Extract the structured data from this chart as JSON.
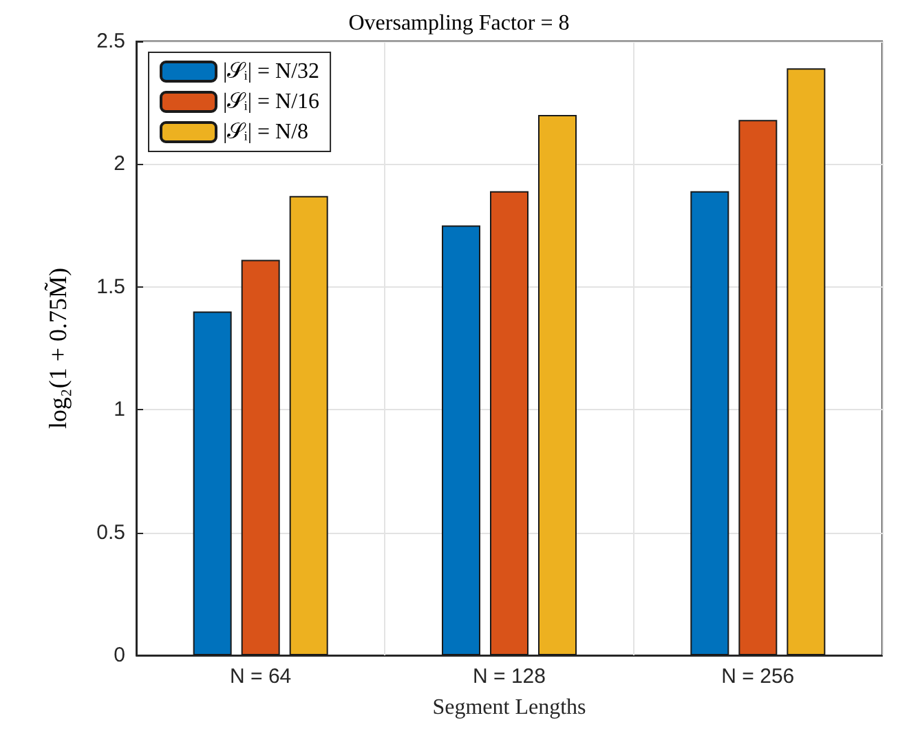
{
  "chart_data": {
    "type": "bar",
    "title": "Oversampling Factor = 8",
    "xlabel": "Segment Lengths",
    "ylabel": "log₂(1 + 0.75M̃)",
    "categories": [
      "N = 64",
      "N = 128",
      "N = 256"
    ],
    "series": [
      {
        "name": "|𝒮ᵢ| = N/32",
        "color": "#0072bd",
        "values": [
          1.4,
          1.75,
          1.89
        ]
      },
      {
        "name": "|𝒮ᵢ| = N/16",
        "color": "#d95319",
        "values": [
          1.61,
          1.89,
          2.18
        ]
      },
      {
        "name": "|𝒮ᵢ| = N/8",
        "color": "#edb120",
        "values": [
          1.87,
          2.2,
          2.39
        ]
      }
    ],
    "ylim": [
      0,
      2.5
    ],
    "yticks": [
      0,
      0.5,
      1,
      1.5,
      2,
      2.5
    ],
    "grid": true,
    "legend": "top left"
  }
}
